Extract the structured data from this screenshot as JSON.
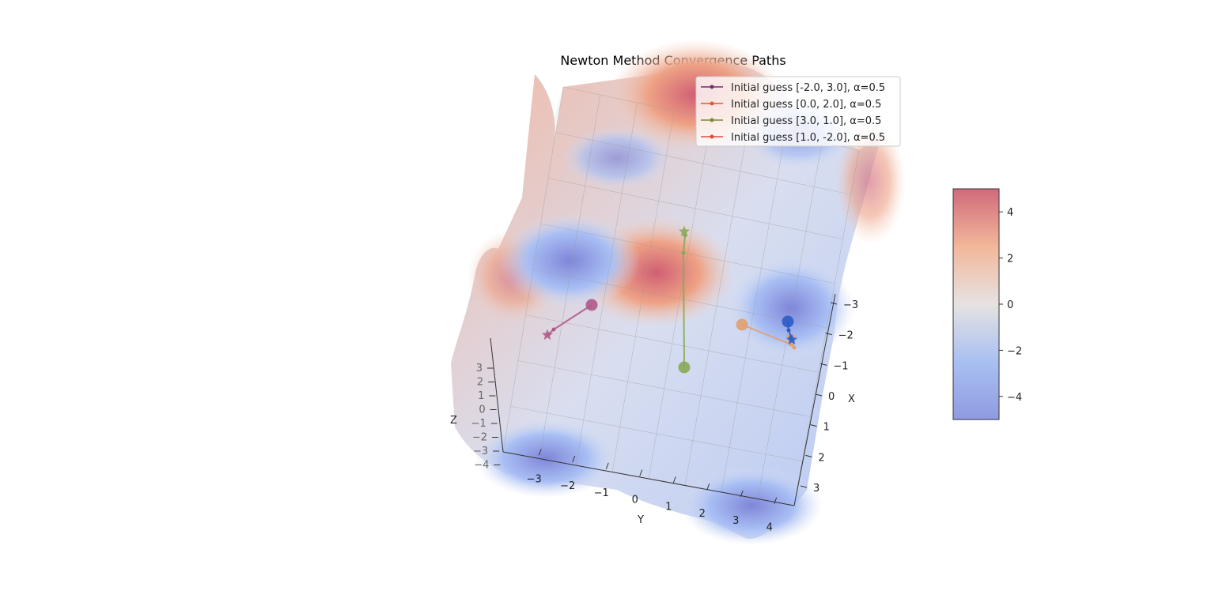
{
  "chart_data": {
    "type": "surface3d",
    "title": "Newton Method Convergence Paths",
    "xlabel": "X",
    "ylabel": "Y",
    "zlabel": "Z",
    "x_ticks": [
      "−3",
      "−2",
      "−1",
      "0",
      "1",
      "2",
      "3"
    ],
    "y_ticks": [
      "−3",
      "−2",
      "−1",
      "0",
      "1",
      "2",
      "3",
      "4"
    ],
    "z_ticks": [
      "3",
      "2",
      "1",
      "0",
      "−1",
      "−2",
      "−3",
      "−4"
    ],
    "xlim": [
      -4,
      4
    ],
    "ylim": [
      -4,
      4
    ],
    "surface_colormap": "coolwarm",
    "colorbar": {
      "ticks": [
        "4",
        "2",
        "0",
        "−2",
        "−4"
      ],
      "range": [
        -5,
        5
      ]
    },
    "legend": {
      "location": "upper right",
      "entries": [
        {
          "label": "Initial guess [-2.0, 3.0], α=0.5",
          "color": "#6f2f6c"
        },
        {
          "label": "Initial guess [0.0, 2.0], α=0.5",
          "color": "#e05a2b"
        },
        {
          "label": "Initial guess [3.0, 1.0], α=0.5",
          "color": "#7a8a3a"
        },
        {
          "label": "Initial guess [1.0, -2.0], α=0.5",
          "color": "#e8463a"
        }
      ]
    },
    "series": [
      {
        "name": "Initial guess [-2.0, 3.0], α=0.5",
        "start": [
          -2.0,
          3.0
        ],
        "alpha": 0.5,
        "color": "#b05a8a"
      },
      {
        "name": "Initial guess [0.0, 2.0], α=0.5",
        "start": [
          0.0,
          2.0
        ],
        "alpha": 0.5,
        "color": "#e0a070"
      },
      {
        "name": "Initial guess [3.0, 1.0], α=0.5",
        "start": [
          3.0,
          1.0
        ],
        "alpha": 0.5,
        "color": "#8aa85a"
      },
      {
        "name": "Initial guess [1.0, -2.0], α=0.5",
        "start": [
          1.0,
          -2.0
        ],
        "alpha": 0.5,
        "color": "#2a5cc8"
      }
    ]
  }
}
